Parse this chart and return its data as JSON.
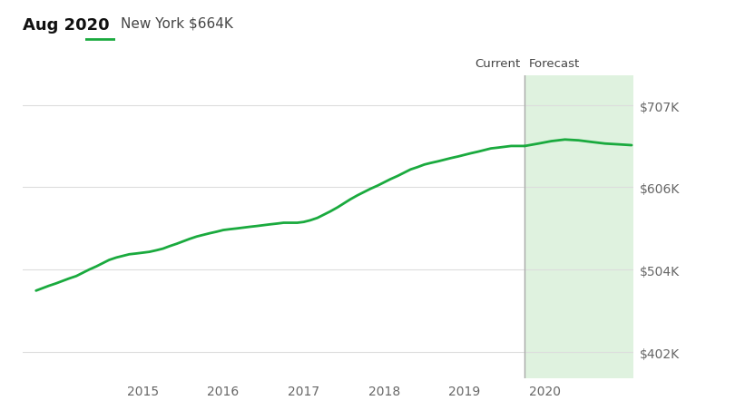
{
  "title_date": "Aug 2020",
  "legend_label": "New York $664K",
  "line_color": "#1aaa3e",
  "forecast_fill_color": "#dff2df",
  "forecast_line_color": "#aaaaaa",
  "bg_color": "#ffffff",
  "grid_color": "#dddddd",
  "text_color": "#444444",
  "axis_label_color": "#666666",
  "current_label": "Current",
  "forecast_label": "Forecast",
  "ytick_labels": [
    "$402K",
    "$504K",
    "$606K",
    "$707K"
  ],
  "ytick_values": [
    402000,
    504000,
    606000,
    707000
  ],
  "ylim": [
    370000,
    745000
  ],
  "xlim_left": 2013.5,
  "xlim_right": 2021.1,
  "forecast_start_year": 2019.75,
  "forecast_end_year": 2021.1,
  "xtick_years": [
    2015,
    2016,
    2017,
    2018,
    2019,
    2020
  ],
  "history_x": [
    2013.67,
    2013.75,
    2013.83,
    2013.92,
    2014.0,
    2014.08,
    2014.17,
    2014.25,
    2014.33,
    2014.42,
    2014.5,
    2014.58,
    2014.67,
    2014.75,
    2014.83,
    2014.92,
    2015.0,
    2015.08,
    2015.17,
    2015.25,
    2015.33,
    2015.42,
    2015.5,
    2015.58,
    2015.67,
    2015.75,
    2015.83,
    2015.92,
    2016.0,
    2016.08,
    2016.17,
    2016.25,
    2016.33,
    2016.42,
    2016.5,
    2016.58,
    2016.67,
    2016.75,
    2016.83,
    2016.92,
    2017.0,
    2017.08,
    2017.17,
    2017.25,
    2017.33,
    2017.42,
    2017.5,
    2017.58,
    2017.67,
    2017.75,
    2017.83,
    2017.92,
    2018.0,
    2018.08,
    2018.17,
    2018.25,
    2018.33,
    2018.42,
    2018.5,
    2018.58,
    2018.67,
    2018.75,
    2018.83,
    2018.92,
    2019.0,
    2019.08,
    2019.17,
    2019.25,
    2019.33,
    2019.42,
    2019.5,
    2019.58,
    2019.67,
    2019.75
  ],
  "history_y": [
    478000,
    481000,
    484000,
    487000,
    490000,
    493000,
    496000,
    500000,
    504000,
    508000,
    512000,
    516000,
    519000,
    521000,
    523000,
    524000,
    525000,
    526000,
    528000,
    530000,
    533000,
    536000,
    539000,
    542000,
    545000,
    547000,
    549000,
    551000,
    553000,
    554000,
    555000,
    556000,
    557000,
    558000,
    559000,
    560000,
    561000,
    562000,
    562000,
    562000,
    563000,
    565000,
    568000,
    572000,
    576000,
    581000,
    586000,
    591000,
    596000,
    600000,
    604000,
    608000,
    612000,
    616000,
    620000,
    624000,
    628000,
    631000,
    634000,
    636000,
    638000,
    640000,
    642000,
    644000,
    646000,
    648000,
    650000,
    652000,
    654000,
    655000,
    656000,
    657000,
    657000,
    657000
  ],
  "forecast_x": [
    2019.75,
    2019.92,
    2020.08,
    2020.25,
    2020.42,
    2020.58,
    2020.75,
    2020.92,
    2021.08
  ],
  "forecast_y": [
    657000,
    660000,
    663000,
    665000,
    664000,
    662000,
    660000,
    659000,
    658000
  ]
}
